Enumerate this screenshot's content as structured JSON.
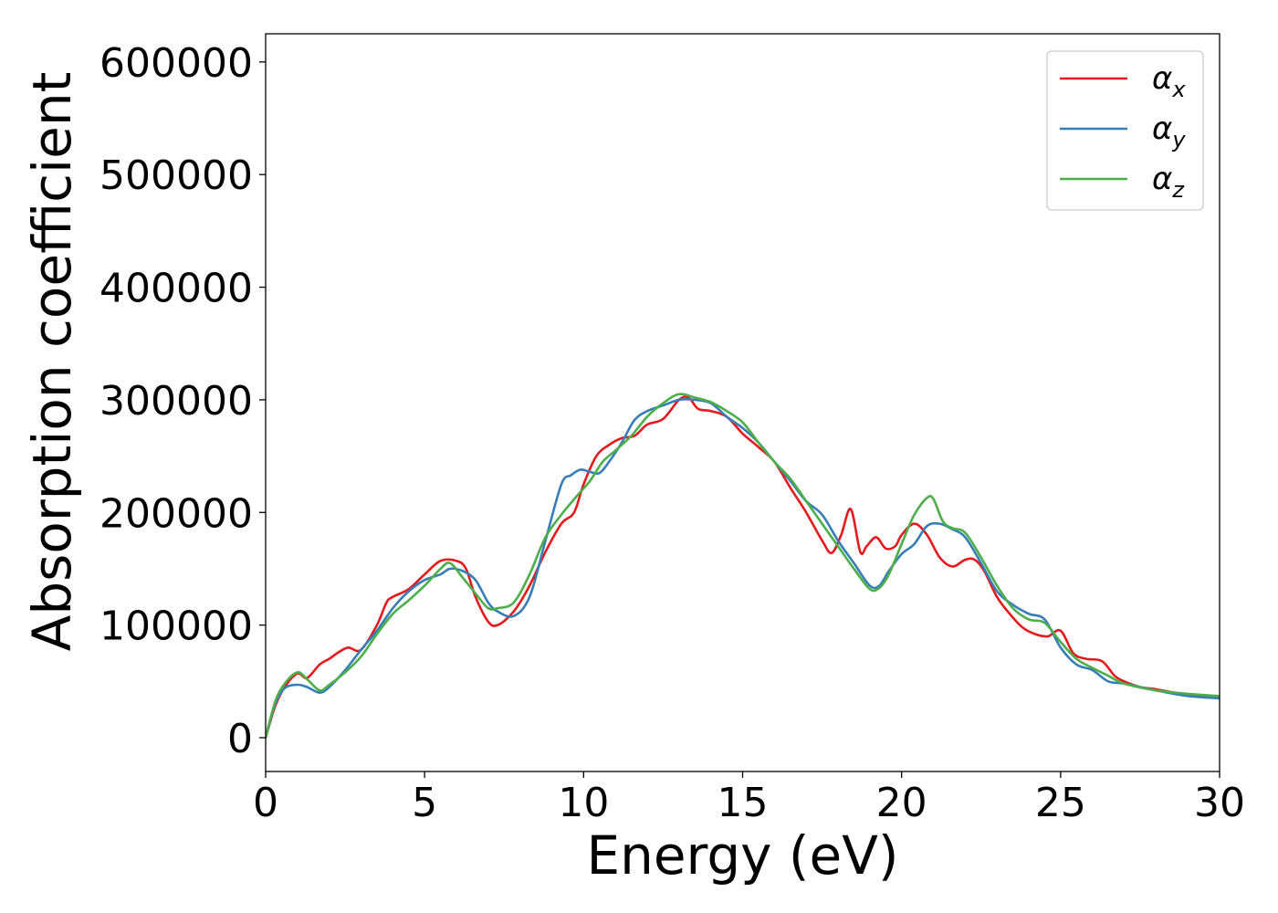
{
  "chart_data": {
    "type": "line",
    "title": "",
    "xlabel": "Energy (eV)",
    "ylabel": "Absorption coefficient",
    "xlim": [
      0,
      30
    ],
    "ylim": [
      -30000,
      625000
    ],
    "xticks": [
      0,
      5,
      10,
      15,
      20,
      25,
      30
    ],
    "yticks": [
      0,
      100000,
      200000,
      300000,
      400000,
      500000,
      600000
    ],
    "grid": false,
    "legend_position": "top-right",
    "series": [
      {
        "symbol": "α",
        "subscript": "x",
        "color": "#e41a1c",
        "x": [
          0,
          0.3,
          0.6,
          1.0,
          1.3,
          1.7,
          2.0,
          2.3,
          2.6,
          3.0,
          3.5,
          3.8,
          4.0,
          4.5,
          5.0,
          5.5,
          6.0,
          6.3,
          6.6,
          7.0,
          7.3,
          7.8,
          8.3,
          8.8,
          9.3,
          9.7,
          10.0,
          10.4,
          10.8,
          11.2,
          11.6,
          12.0,
          12.5,
          13.0,
          13.3,
          13.6,
          14.0,
          14.5,
          15.0,
          15.5,
          16.0,
          16.5,
          17.0,
          17.5,
          17.8,
          18.1,
          18.4,
          18.7,
          18.9,
          19.2,
          19.5,
          19.8,
          20.0,
          20.4,
          20.8,
          21.2,
          21.6,
          22.0,
          22.3,
          22.6,
          23.0,
          23.4,
          23.8,
          24.2,
          24.6,
          25.0,
          25.4,
          25.8,
          26.3,
          26.7,
          27.0,
          27.5,
          28.0,
          29.0,
          30.0
        ],
        "y": [
          0,
          28000,
          45000,
          57000,
          53000,
          65000,
          70000,
          76000,
          80000,
          78000,
          100000,
          120000,
          125000,
          132000,
          145000,
          157000,
          157000,
          150000,
          125000,
          103000,
          100000,
          112000,
          135000,
          165000,
          190000,
          200000,
          225000,
          250000,
          260000,
          266000,
          268000,
          278000,
          283000,
          300000,
          302000,
          292000,
          290000,
          285000,
          270000,
          258000,
          245000,
          222000,
          200000,
          175000,
          164000,
          180000,
          203000,
          165000,
          170000,
          178000,
          168000,
          170000,
          180000,
          190000,
          180000,
          160000,
          152000,
          158000,
          158000,
          148000,
          125000,
          110000,
          98000,
          92000,
          90000,
          95000,
          75000,
          70000,
          68000,
          55000,
          50000,
          45000,
          43000,
          38000,
          35000
        ]
      },
      {
        "symbol": "α",
        "subscript": "y",
        "color": "#377eb8",
        "x": [
          0,
          0.3,
          0.6,
          1.0,
          1.3,
          1.7,
          2.0,
          2.5,
          3.0,
          3.5,
          4.0,
          4.5,
          5.0,
          5.5,
          5.8,
          6.2,
          6.6,
          7.0,
          7.3,
          7.8,
          8.3,
          8.8,
          9.3,
          9.6,
          9.9,
          10.2,
          10.5,
          10.8,
          11.2,
          11.6,
          12.0,
          12.5,
          13.0,
          13.5,
          14.0,
          14.5,
          15.0,
          15.5,
          16.0,
          16.5,
          17.0,
          17.5,
          18.0,
          18.5,
          19.0,
          19.3,
          19.6,
          20.0,
          20.4,
          20.8,
          21.2,
          21.6,
          22.0,
          22.5,
          23.0,
          23.5,
          24.0,
          24.5,
          25.0,
          25.5,
          26.0,
          26.5,
          27.0,
          28.0,
          29.0,
          30.0
        ],
        "y": [
          0,
          30000,
          44000,
          47000,
          45000,
          40000,
          45000,
          60000,
          78000,
          95000,
          115000,
          130000,
          140000,
          145000,
          150000,
          148000,
          140000,
          120000,
          112000,
          108000,
          125000,
          175000,
          225000,
          233000,
          238000,
          236000,
          235000,
          245000,
          262000,
          282000,
          290000,
          295000,
          300000,
          300000,
          297000,
          285000,
          275000,
          262000,
          245000,
          228000,
          210000,
          198000,
          175000,
          155000,
          135000,
          135000,
          148000,
          163000,
          172000,
          188000,
          190000,
          185000,
          178000,
          155000,
          130000,
          118000,
          110000,
          105000,
          80000,
          65000,
          60000,
          50000,
          48000,
          42000,
          37000,
          35000
        ]
      },
      {
        "symbol": "α",
        "subscript": "z",
        "color": "#4daf4a",
        "x": [
          0,
          0.3,
          0.6,
          1.0,
          1.3,
          1.7,
          2.0,
          2.5,
          3.0,
          3.5,
          4.0,
          4.5,
          5.0,
          5.5,
          5.8,
          6.2,
          6.6,
          7.0,
          7.3,
          7.8,
          8.3,
          8.8,
          9.3,
          9.8,
          10.2,
          10.6,
          11.0,
          11.5,
          12.0,
          12.5,
          13.0,
          13.5,
          14.0,
          14.5,
          15.0,
          15.5,
          16.0,
          16.5,
          17.0,
          17.5,
          18.0,
          18.5,
          19.0,
          19.3,
          19.6,
          20.0,
          20.4,
          20.8,
          21.0,
          21.3,
          21.6,
          22.0,
          22.5,
          23.0,
          23.5,
          24.0,
          24.5,
          25.0,
          25.5,
          26.0,
          26.5,
          27.0,
          28.0,
          29.0,
          30.0
        ],
        "y": [
          0,
          32000,
          48000,
          58000,
          52000,
          42000,
          47000,
          58000,
          72000,
          92000,
          110000,
          122000,
          135000,
          150000,
          155000,
          142000,
          128000,
          115000,
          115000,
          120000,
          145000,
          178000,
          198000,
          215000,
          228000,
          245000,
          255000,
          268000,
          285000,
          297000,
          305000,
          302000,
          298000,
          290000,
          280000,
          262000,
          245000,
          230000,
          210000,
          190000,
          170000,
          150000,
          132000,
          133000,
          145000,
          172000,
          198000,
          213000,
          212000,
          192000,
          186000,
          182000,
          160000,
          135000,
          115000,
          105000,
          102000,
          85000,
          70000,
          62000,
          55000,
          48000,
          42000,
          39000,
          37000
        ]
      }
    ]
  }
}
